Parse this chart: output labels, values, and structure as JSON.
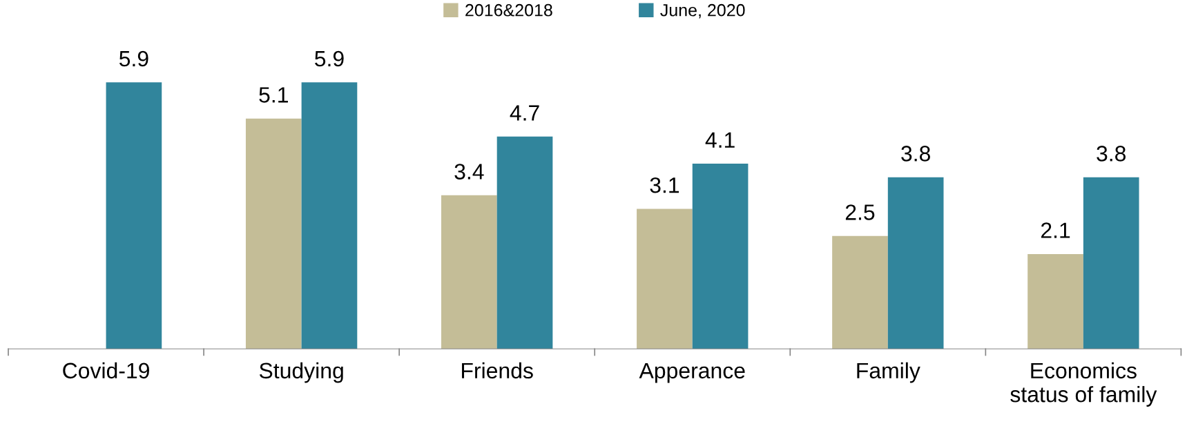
{
  "chart_data": {
    "type": "bar",
    "categories": [
      "Covid-19",
      "Studying",
      "Friends",
      "Apperance",
      "Family",
      "Economics\nstatus of family"
    ],
    "series": [
      {
        "name": "2016&2018",
        "color": "#c4bd97",
        "values": [
          null,
          5.1,
          3.4,
          3.1,
          2.5,
          2.1
        ]
      },
      {
        "name": "June, 2020",
        "color": "#31859c",
        "values": [
          5.9,
          5.9,
          4.7,
          4.1,
          3.8,
          3.8
        ]
      }
    ],
    "data_labels": true,
    "legend": "top",
    "grid": false
  }
}
